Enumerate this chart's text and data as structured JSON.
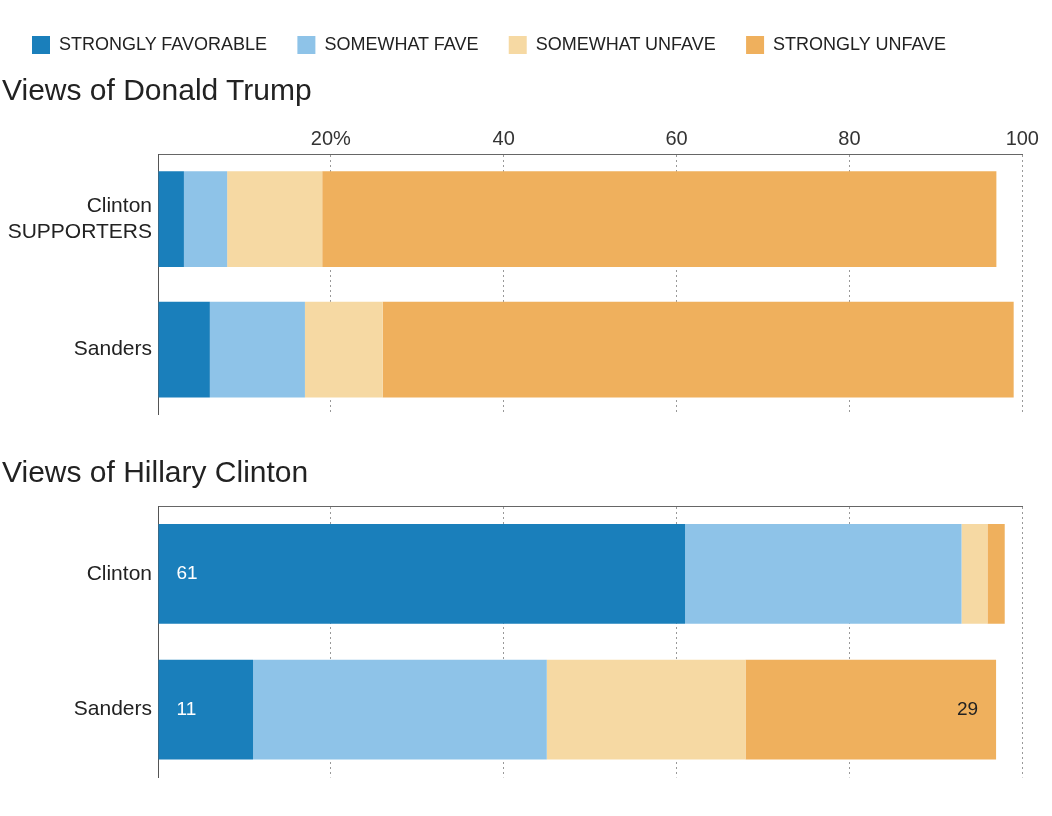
{
  "chart_data": [
    {
      "type": "bar",
      "orientation": "horizontal",
      "stacked": true,
      "title": "Views of Donald Trump",
      "categories": [
        "Clinton SUPPORTERS",
        "Sanders"
      ],
      "series": [
        {
          "name": "STRONGLY FAVORABLE",
          "color": "#1a7fbb",
          "values": [
            3,
            6
          ]
        },
        {
          "name": "SOMEWHAT FAVE",
          "color": "#8ec3e8",
          "values": [
            5,
            11
          ]
        },
        {
          "name": "SOMEWHAT UNFAVE",
          "color": "#f6d9a3",
          "values": [
            11,
            9
          ]
        },
        {
          "name": "STRONGLY UNFAVE",
          "color": "#efb05d",
          "values": [
            78,
            73
          ]
        }
      ],
      "xlim": [
        0,
        100
      ],
      "xticks": [
        {
          "value": 20,
          "label": "20%"
        },
        40,
        60,
        80,
        100
      ],
      "grid": "x",
      "legend": "top"
    },
    {
      "type": "bar",
      "orientation": "horizontal",
      "stacked": true,
      "title": "Views of Hillary Clinton",
      "categories": [
        "Clinton",
        "Sanders"
      ],
      "series": [
        {
          "color": "#1a7fbb",
          "values": [
            61,
            11
          ],
          "value_labels": [
            "61",
            "11"
          ]
        },
        {
          "color": "#8ec3e8",
          "values": [
            32,
            34
          ]
        },
        {
          "color": "#f6d9a3",
          "values": [
            3,
            23
          ]
        },
        {
          "color": "#efb05d",
          "values": [
            2,
            29
          ],
          "value_labels": [
            null,
            "29"
          ]
        }
      ],
      "xlim": [
        0,
        100
      ],
      "xticks": [
        20,
        40,
        60,
        80,
        100
      ],
      "grid": "x",
      "tick_labels": "y"
    }
  ]
}
